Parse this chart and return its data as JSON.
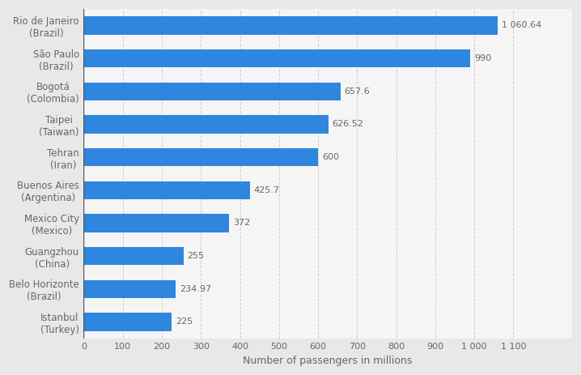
{
  "categories": [
    "Istanbul\n(Turkey)",
    "Belo Horizonte\n(Brazil)",
    "Guangzhou\n(China)",
    "Mexico City\n(Mexico)",
    "Buenos Aires\n(Argentina)",
    "Tehran\n(Iran)",
    "Taipei\n(Taiwan)",
    "Bogotá\n(Colombia)",
    "São Paulo\n(Brazil)",
    "Rio de Janeiro\n(Brazil)"
  ],
  "values": [
    225,
    234.97,
    255,
    372,
    425.7,
    600,
    626.52,
    657.6,
    990,
    1060.64
  ],
  "labels": [
    "225",
    "234.97",
    "255",
    "372",
    "425.7",
    "600",
    "626.52",
    "657.6",
    "990",
    "1 060.64"
  ],
  "bar_color": "#2e86de",
  "background_color": "#e8e8e8",
  "plot_background_color": "#f5f5f5",
  "xlabel": "Number of passengers in millions",
  "xlim": [
    0,
    1250
  ],
  "xticks": [
    0,
    100,
    200,
    300,
    400,
    500,
    600,
    700,
    800,
    900,
    1000,
    1100
  ],
  "xtick_labels": [
    "0",
    "100",
    "200",
    "300",
    "400",
    "500",
    "600",
    "700",
    "800",
    "900",
    "1 000",
    "1 100"
  ],
  "grid_color": "#cccccc",
  "label_color": "#666666",
  "tick_label_color": "#666666",
  "bar_height": 0.55
}
